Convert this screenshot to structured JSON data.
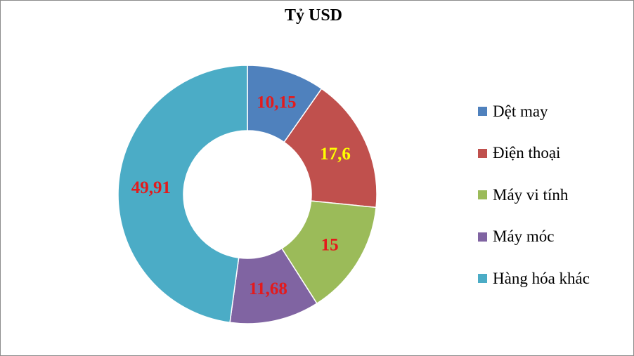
{
  "chart_data": {
    "type": "pie",
    "title": "Tỷ USD",
    "categories": [
      "Dệt may",
      "Điện thoại",
      "Máy vi tính",
      "Máy móc",
      "Hàng hóa khác"
    ],
    "values": [
      10.15,
      17.6,
      15,
      11.68,
      49.91
    ],
    "value_labels": [
      "10,15",
      "17,6",
      "15",
      "11,68",
      "49,91"
    ],
    "colors": [
      "#4F81BD",
      "#C0504D",
      "#9BBB59",
      "#8064A2",
      "#4BACC6"
    ],
    "label_colors": [
      "#E41A1C",
      "#FFFF00",
      "#E41A1C",
      "#E41A1C",
      "#E41A1C"
    ],
    "donut": true,
    "legend_position": "right"
  }
}
